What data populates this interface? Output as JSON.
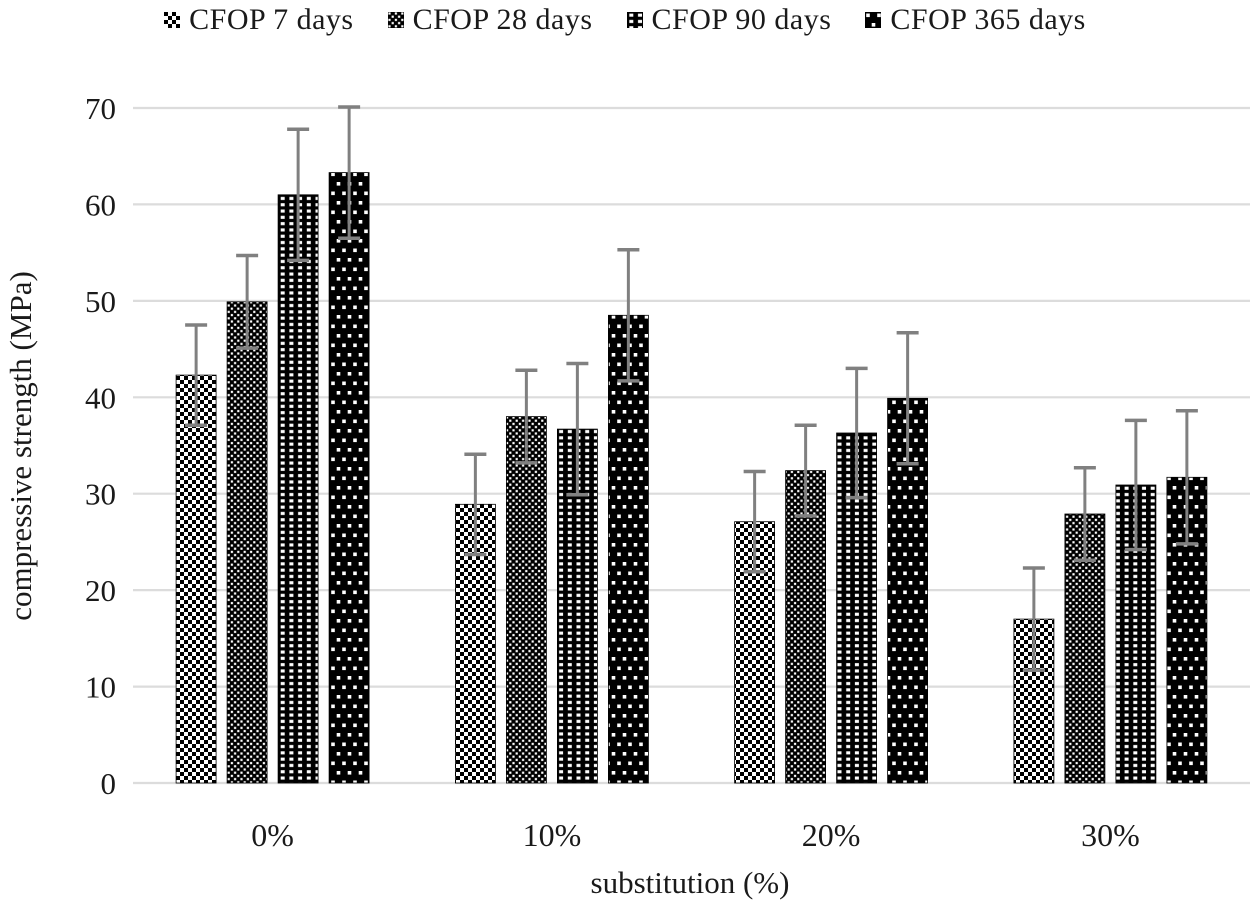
{
  "chart_data": {
    "type": "bar",
    "title": "",
    "xlabel": "substitution (%)",
    "ylabel": "compressive strength (MPa)",
    "categories": [
      "0%",
      "10%",
      "20%",
      "30%"
    ],
    "ylim": [
      0,
      70
    ],
    "yticks": [
      0,
      10,
      20,
      30,
      40,
      50,
      60,
      70
    ],
    "grid": true,
    "legend_position": "top",
    "error_bars": true,
    "series": [
      {
        "name": "CFOP 7 days",
        "pattern": "fine-checkerboard",
        "values": [
          42.3,
          28.9,
          27.1,
          17.0
        ],
        "errors": [
          5.2,
          5.2,
          5.2,
          5.3
        ]
      },
      {
        "name": "CFOP 28 days",
        "pattern": "dense-checker-weave",
        "values": [
          49.9,
          38.0,
          32.4,
          27.9
        ],
        "errors": [
          4.8,
          4.8,
          4.7,
          4.8
        ]
      },
      {
        "name": "CFOP 90 days",
        "pattern": "white-dot-grid-on-black",
        "values": [
          61.0,
          36.7,
          36.3,
          30.9
        ],
        "errors": [
          6.8,
          6.8,
          6.7,
          6.7
        ]
      },
      {
        "name": "CFOP 365 days",
        "pattern": "sparse-white-dots-on-black",
        "values": [
          63.3,
          48.5,
          39.9,
          31.7
        ],
        "errors": [
          6.8,
          6.8,
          6.8,
          6.9
        ]
      }
    ],
    "colors": {
      "bar_black": "#000000",
      "bar_white": "#ffffff",
      "error_bar": "#808080",
      "gridline": "#dcdcdc",
      "text": "#1a1a1a",
      "background": "#ffffff"
    }
  }
}
